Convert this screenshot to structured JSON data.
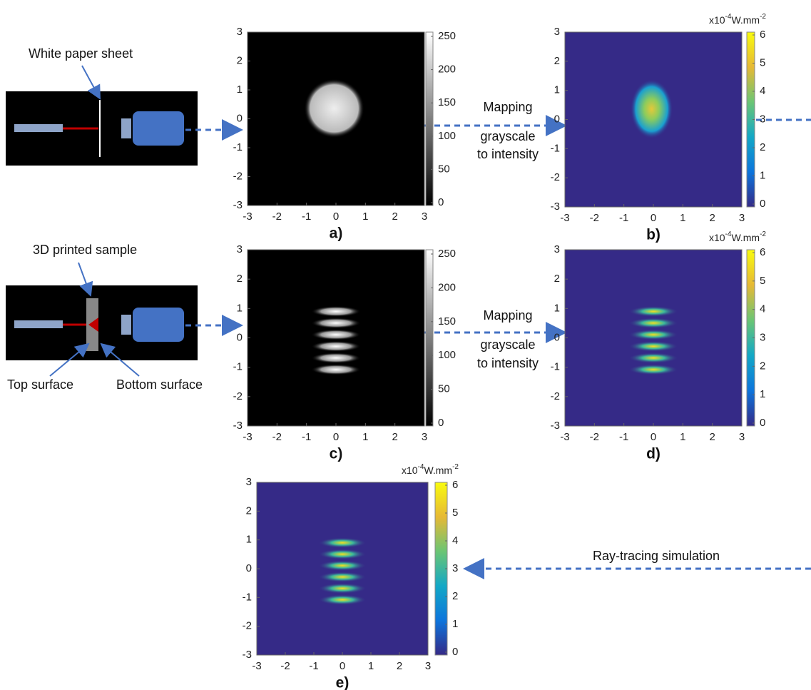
{
  "panels": [
    {
      "caption": "a)",
      "xticks": [
        -3,
        -2,
        -1,
        0,
        1,
        2,
        3
      ],
      "yticks": [
        -3,
        -2,
        -1,
        0,
        1,
        2,
        3
      ],
      "colorbar_ticks": [
        0,
        50,
        100,
        150,
        200,
        250
      ]
    },
    {
      "caption": "b)",
      "xticks": [
        -3,
        -2,
        -1,
        0,
        1,
        2,
        3
      ],
      "yticks": [
        -3,
        -2,
        -1,
        0,
        1,
        2,
        3
      ],
      "colorbar_ticks": [
        0,
        1,
        2,
        3,
        4,
        5,
        6
      ],
      "unit": {
        "prefix": "x10",
        "exponent": "-4",
        "unit": "W.mm",
        "unit_exponent": "-2"
      }
    },
    {
      "caption": "c)",
      "xticks": [
        -3,
        -2,
        -1,
        0,
        1,
        2,
        3
      ],
      "yticks": [
        -3,
        -2,
        -1,
        0,
        1,
        2,
        3
      ],
      "colorbar_ticks": [
        0,
        50,
        100,
        150,
        200,
        250
      ]
    },
    {
      "caption": "d)",
      "xticks": [
        -3,
        -2,
        -1,
        0,
        1,
        2,
        3
      ],
      "yticks": [
        -3,
        -2,
        -1,
        0,
        1,
        2,
        3
      ],
      "colorbar_ticks": [
        0,
        1,
        2,
        3,
        4,
        5,
        6
      ],
      "unit": {
        "prefix": "x10",
        "exponent": "-4",
        "unit": "W.mm",
        "unit_exponent": "-2"
      }
    },
    {
      "caption": "e)",
      "xticks": [
        -3,
        -2,
        -1,
        0,
        1,
        2,
        3
      ],
      "yticks": [
        -3,
        -2,
        -1,
        0,
        1,
        2,
        3
      ],
      "colorbar_ticks": [
        0,
        1,
        2,
        3,
        4,
        5,
        6
      ],
      "unit": {
        "prefix": "x10",
        "exponent": "-4",
        "unit": "W.mm",
        "unit_exponent": "-2"
      }
    }
  ],
  "setup_labels": {
    "paper": "White paper sheet",
    "sample": "3D printed sample",
    "top": "Top surface",
    "bottom": "Bottom surface"
  },
  "mapping_top": [
    "Mapping",
    "grayscale",
    "to intensity"
  ],
  "mapping_bottom": [
    "Mapping",
    "grayscale",
    "to intensity"
  ],
  "simulation_label": "Ray-tracing simulation"
}
